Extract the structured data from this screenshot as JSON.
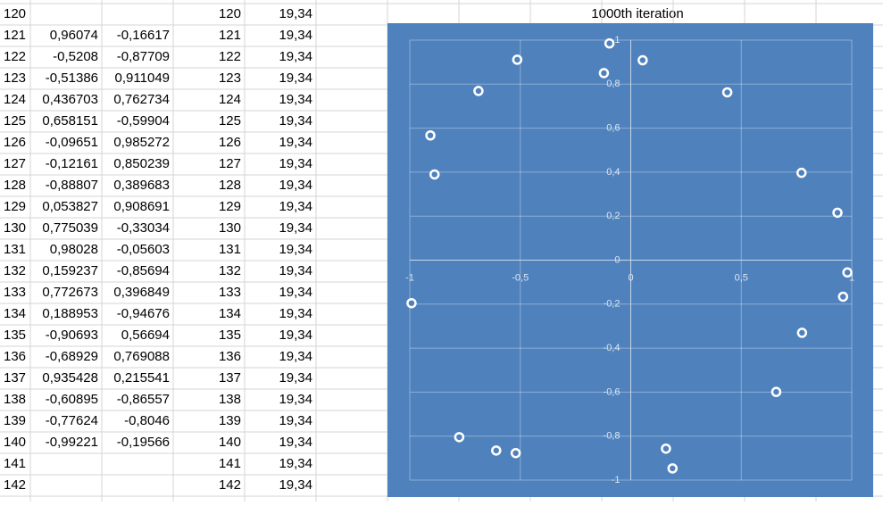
{
  "sheet": {
    "rows": [
      {
        "row": "120",
        "d": "120",
        "e": "19,34"
      },
      {
        "row": "121",
        "b": "0,96074",
        "c": "-0,16617",
        "d": "121",
        "e": "19,34"
      },
      {
        "row": "122",
        "b": "-0,5208",
        "c": "-0,87709",
        "d": "122",
        "e": "19,34"
      },
      {
        "row": "123",
        "b": "-0,51386",
        "c": "0,911049",
        "d": "123",
        "e": "19,34"
      },
      {
        "row": "124",
        "b": "0,436703",
        "c": "0,762734",
        "d": "124",
        "e": "19,34"
      },
      {
        "row": "125",
        "b": "0,658151",
        "c": "-0,59904",
        "d": "125",
        "e": "19,34"
      },
      {
        "row": "126",
        "b": "-0,09651",
        "c": "0,985272",
        "d": "126",
        "e": "19,34"
      },
      {
        "row": "127",
        "b": "-0,12161",
        "c": "0,850239",
        "d": "127",
        "e": "19,34"
      },
      {
        "row": "128",
        "b": "-0,88807",
        "c": "0,389683",
        "d": "128",
        "e": "19,34"
      },
      {
        "row": "129",
        "b": "0,053827",
        "c": "0,908691",
        "d": "129",
        "e": "19,34"
      },
      {
        "row": "130",
        "b": "0,775039",
        "c": "-0,33034",
        "d": "130",
        "e": "19,34"
      },
      {
        "row": "131",
        "b": "0,98028",
        "c": "-0,05603",
        "d": "131",
        "e": "19,34"
      },
      {
        "row": "132",
        "b": "0,159237",
        "c": "-0,85694",
        "d": "132",
        "e": "19,34"
      },
      {
        "row": "133",
        "b": "0,772673",
        "c": "0,396849",
        "d": "133",
        "e": "19,34"
      },
      {
        "row": "134",
        "b": "0,188953",
        "c": "-0,94676",
        "d": "134",
        "e": "19,34"
      },
      {
        "row": "135",
        "b": "-0,90693",
        "c": "0,56694",
        "d": "135",
        "e": "19,34"
      },
      {
        "row": "136",
        "b": "-0,68929",
        "c": "0,769088",
        "d": "136",
        "e": "19,34"
      },
      {
        "row": "137",
        "b": "0,935428",
        "c": "0,215541",
        "d": "137",
        "e": "19,34"
      },
      {
        "row": "138",
        "b": "-0,60895",
        "c": "-0,86557",
        "d": "138",
        "e": "19,34"
      },
      {
        "row": "139",
        "b": "-0,77624",
        "c": "-0,8046",
        "d": "139",
        "e": "19,34"
      },
      {
        "row": "140",
        "b": "-0,99221",
        "c": "-0,19566",
        "d": "140",
        "e": "19,34"
      },
      {
        "row": "141",
        "d": "141",
        "e": "19,34"
      },
      {
        "row": "142",
        "d": "142",
        "e": "19,34"
      }
    ]
  },
  "chart_data": {
    "type": "scatter",
    "title": "1000th iteration",
    "x": [
      0.96074,
      -0.5208,
      -0.51386,
      0.436703,
      0.658151,
      -0.09651,
      -0.12161,
      -0.88807,
      0.053827,
      0.775039,
      0.98028,
      0.159237,
      0.772673,
      0.188953,
      -0.90693,
      -0.68929,
      0.935428,
      -0.60895,
      -0.77624,
      -0.99221
    ],
    "y": [
      -0.16617,
      -0.87709,
      0.911049,
      0.762734,
      -0.59904,
      0.985272,
      0.850239,
      0.389683,
      0.908691,
      -0.33034,
      -0.05603,
      -0.85694,
      0.396849,
      -0.94676,
      0.56694,
      0.769088,
      0.215541,
      -0.86557,
      -0.8046,
      -0.19566
    ],
    "xlim": [
      -1,
      1
    ],
    "ylim": [
      -1,
      1
    ],
    "xticks": [
      -1,
      {
        "value": -0.5,
        "label": "-0,5"
      },
      0,
      {
        "value": 0.5,
        "label": "0,5"
      },
      1
    ],
    "yticks": [
      -1,
      {
        "value": -0.8,
        "label": "-0,8"
      },
      {
        "value": -0.6,
        "label": "-0,6"
      },
      {
        "value": -0.4,
        "label": "-0,4"
      },
      {
        "value": -0.2,
        "label": "-0,2"
      },
      0,
      {
        "value": 0.2,
        "label": "0,2"
      },
      {
        "value": 0.4,
        "label": "0,4"
      },
      {
        "value": 0.6,
        "label": "0,6"
      },
      {
        "value": 0.8,
        "label": "0,8"
      },
      1
    ],
    "grid": true,
    "background": "#4f81bd",
    "marker_color": "#ffffff"
  }
}
